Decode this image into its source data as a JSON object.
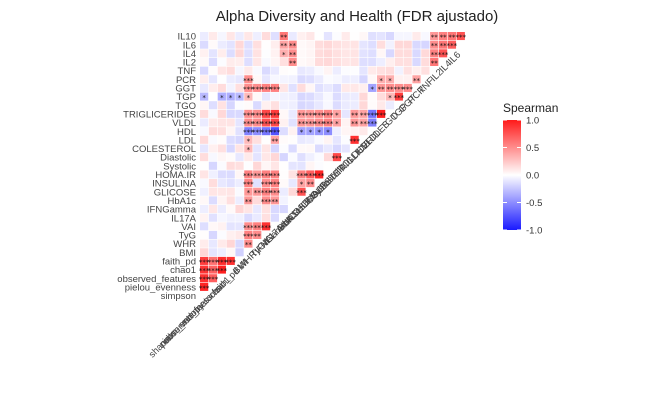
{
  "chart_data": {
    "type": "heatmap",
    "title": "Alpha Diversity and Health (FDR ajustado)",
    "variables": [
      "shannon_entropy",
      "pielou_evenness",
      "observed_features",
      "chao1",
      "faith_pd",
      "BMI",
      "WHR",
      "TyG",
      "VAI",
      "IL17A",
      "IFNGamma",
      "HbA1c",
      "GLICOSE",
      "INSULINA",
      "HOMA.IR",
      "Systolic",
      "Diastolic",
      "COLESTEROL",
      "LDL",
      "HDL",
      "VLDL",
      "TRIGLICERIDES",
      "TGO",
      "TGP",
      "GGT",
      "PCR",
      "TNF",
      "IL2",
      "IL4",
      "IL6",
      "IL10",
      "simpson"
    ],
    "x_order": [
      "shannon_entropy",
      "pielou_evenness",
      "observed_features",
      "chao1",
      "faith_pd",
      "BMI",
      "WHR",
      "TyG",
      "VAI",
      "IL17A",
      "IFNGamma",
      "HbA1c",
      "GLICOSE",
      "INSULINA",
      "HOMA.IR",
      "Systolic",
      "Diastolic",
      "COLESTEROL",
      "LDL",
      "HDL",
      "VLDL",
      "TRIGLICERIDES",
      "TGO",
      "TGP",
      "GGT",
      "PCR",
      "TNF",
      "IL2",
      "IL4",
      "IL6"
    ],
    "y_order": [
      "IL10",
      "IL6",
      "IL4",
      "IL2",
      "TNF",
      "PCR",
      "GGT",
      "TGP",
      "TGO",
      "TRIGLICERIDES",
      "VLDL",
      "HDL",
      "LDL",
      "COLESTEROL",
      "Diastolic",
      "Systolic",
      "HOMA.IR",
      "INSULINA",
      "GLICOSE",
      "HbA1c",
      "IFNGamma",
      "IL17A",
      "VAI",
      "TyG",
      "WHR",
      "BMI",
      "faith_pd",
      "chao1",
      "observed_features",
      "pielou_evenness",
      "simpson"
    ],
    "x_tick_labels_shown": [
      "shannon_entropy",
      "pielou_evenness",
      "observed_features",
      "chao1",
      "faith_pd",
      "BMI",
      "WHR",
      "TyG",
      "VAI",
      "IL17A",
      "IFNGamma",
      "HbA1c",
      "GLICOSE",
      "INSULINA",
      "HOMA.IR",
      "Systolic",
      "Diastolic",
      "COLESTEROL",
      "LDL",
      "HDL",
      "VLDL",
      "TRIGLICERIDES",
      "TGO",
      "TGP",
      "GGT",
      "PCR",
      "TNF",
      "IL2",
      "IL4",
      "IL6"
    ],
    "legend": {
      "title": "Spearman",
      "range": [
        -1,
        1
      ],
      "ticks": [
        1.0,
        0.5,
        0.0,
        -0.5,
        -1.0
      ],
      "tick_labels": [
        "1.0",
        "0.5",
        "0.0",
        "-0.5",
        "-1.0"
      ],
      "colors": {
        "low": "#1a1aff",
        "mid": "#ffffff",
        "high": "#ff1a1a"
      },
      "placement": "right"
    },
    "grid": true,
    "strong_correlations": [
      [
        "shannon_entropy",
        "pielou_evenness",
        0.95,
        "***"
      ],
      [
        "shannon_entropy",
        "observed_features",
        0.9,
        "***"
      ],
      [
        "shannon_entropy",
        "chao1",
        0.88,
        "***"
      ],
      [
        "shannon_entropy",
        "faith_pd",
        0.85,
        "***"
      ],
      [
        "shannon_entropy",
        "simpson",
        0.95,
        "***"
      ],
      [
        "pielou_evenness",
        "observed_features",
        0.7,
        "***"
      ],
      [
        "pielou_evenness",
        "chao1",
        0.68,
        "***"
      ],
      [
        "pielou_evenness",
        "faith_pd",
        0.62,
        "***"
      ],
      [
        "pielou_evenness",
        "simpson",
        0.95,
        "***"
      ],
      [
        "observed_features",
        "chao1",
        0.98,
        "***"
      ],
      [
        "observed_features",
        "faith_pd",
        0.92,
        "***"
      ],
      [
        "chao1",
        "faith_pd",
        0.9,
        "***"
      ],
      [
        "BMI",
        "WHR",
        0.5,
        "**"
      ],
      [
        "BMI",
        "TyG",
        0.55,
        "***"
      ],
      [
        "BMI",
        "VAI",
        0.5,
        "***"
      ],
      [
        "BMI",
        "HbA1c",
        0.45,
        "**"
      ],
      [
        "BMI",
        "GLICOSE",
        0.45,
        "*"
      ],
      [
        "BMI",
        "INSULINA",
        0.55,
        "***"
      ],
      [
        "BMI",
        "HOMA.IR",
        0.55,
        "***"
      ],
      [
        "BMI",
        "COLESTEROL",
        0.3,
        "*"
      ],
      [
        "BMI",
        "LDL",
        0.3,
        "*"
      ],
      [
        "BMI",
        "HDL",
        -0.55,
        "***"
      ],
      [
        "BMI",
        "VLDL",
        0.5,
        "***"
      ],
      [
        "BMI",
        "TRIGLICERIDES",
        0.5,
        "***"
      ],
      [
        "BMI",
        "GGT",
        0.5,
        "***"
      ],
      [
        "BMI",
        "PCR",
        0.5,
        "***"
      ],
      [
        "WHR",
        "TyG",
        0.5,
        "**"
      ],
      [
        "WHR",
        "VAI",
        0.55,
        "**"
      ],
      [
        "WHR",
        "GLICOSE",
        0.45,
        "**"
      ],
      [
        "WHR",
        "HOMA.IR",
        0.45,
        "**"
      ],
      [
        "WHR",
        "VLDL",
        0.5,
        "***"
      ],
      [
        "WHR",
        "TRIGLICERIDES",
        0.5,
        "***"
      ],
      [
        "WHR",
        "GGT",
        0.5,
        "***"
      ],
      [
        "WHR",
        "HDL",
        -0.5,
        "***"
      ],
      [
        "TyG",
        "VAI",
        0.9,
        "***"
      ],
      [
        "TyG",
        "HbA1c",
        0.5,
        "***"
      ],
      [
        "TyG",
        "GLICOSE",
        0.55,
        "***"
      ],
      [
        "TyG",
        "INSULINA",
        0.5,
        "***"
      ],
      [
        "TyG",
        "HOMA.IR",
        0.55,
        "***"
      ],
      [
        "TyG",
        "VLDL",
        0.75,
        "***"
      ],
      [
        "TyG",
        "TRIGLICERIDES",
        0.8,
        "***"
      ],
      [
        "TyG",
        "GGT",
        0.55,
        "***"
      ],
      [
        "TyG",
        "HDL",
        -0.6,
        "***"
      ],
      [
        "VAI",
        "HbA1c",
        0.45,
        "**"
      ],
      [
        "VAI",
        "GLICOSE",
        0.5,
        "***"
      ],
      [
        "VAI",
        "INSULINA",
        0.55,
        "***"
      ],
      [
        "VAI",
        "HOMA.IR",
        0.55,
        "***"
      ],
      [
        "VAI",
        "VLDL",
        0.8,
        "***"
      ],
      [
        "VAI",
        "TRIGLICERIDES",
        0.85,
        "***"
      ],
      [
        "VAI",
        "HDL",
        -0.75,
        "***"
      ],
      [
        "VAI",
        "GGT",
        0.55,
        "***"
      ],
      [
        "VAI",
        "LDL",
        0.4,
        "**"
      ],
      [
        "IL17A",
        "IL10",
        0.6,
        "**"
      ],
      [
        "IFNGamma",
        "IL6",
        0.5,
        "**"
      ],
      [
        "IFNGamma",
        "IL4",
        0.5,
        "**"
      ],
      [
        "IFNGamma",
        "IL2",
        0.5,
        "**"
      ],
      [
        "HbA1c",
        "GLICOSE",
        0.75,
        "***"
      ],
      [
        "HbA1c",
        "HOMA.IR",
        0.55,
        "***"
      ],
      [
        "HbA1c",
        "VLDL",
        0.45,
        "**"
      ],
      [
        "HbA1c",
        "TRIGLICERIDES",
        0.45,
        "**"
      ],
      [
        "HbA1c",
        "HDL",
        -0.4,
        "*"
      ],
      [
        "GLICOSE",
        "INSULINA",
        0.5,
        "**"
      ],
      [
        "GLICOSE",
        "HOMA.IR",
        0.7,
        "***"
      ],
      [
        "GLICOSE",
        "VLDL",
        0.45,
        "***"
      ],
      [
        "GLICOSE",
        "TRIGLICERIDES",
        0.45,
        "***"
      ],
      [
        "GLICOSE",
        "HDL",
        -0.4,
        "*"
      ],
      [
        "INSULINA",
        "HOMA.IR",
        0.95,
        "***"
      ],
      [
        "INSULINA",
        "VLDL",
        0.5,
        "***"
      ],
      [
        "INSULINA",
        "TRIGLICERIDES",
        0.5,
        "***"
      ],
      [
        "INSULINA",
        "HDL",
        -0.45,
        "*"
      ],
      [
        "HOMA.IR",
        "VLDL",
        0.55,
        "***"
      ],
      [
        "HOMA.IR",
        "TRIGLICERIDES",
        0.55,
        "***"
      ],
      [
        "HOMA.IR",
        "HDL",
        -0.5,
        "*"
      ],
      [
        "Systolic",
        "Diastolic",
        0.8,
        "***"
      ],
      [
        "Systolic",
        "VLDL",
        0.4,
        "*"
      ],
      [
        "Systolic",
        "TRIGLICERIDES",
        0.4,
        "*"
      ],
      [
        "COLESTEROL",
        "LDL",
        0.9,
        "***"
      ],
      [
        "COLESTEROL",
        "VLDL",
        0.45,
        "**"
      ],
      [
        "COLESTEROL",
        "TRIGLICERIDES",
        0.45,
        "**"
      ],
      [
        "LDL",
        "VLDL",
        0.4,
        "**"
      ],
      [
        "LDL",
        "TRIGLICERIDES",
        0.4,
        "**"
      ],
      [
        "HDL",
        "VLDL",
        -0.55,
        "***"
      ],
      [
        "HDL",
        "TRIGLICERIDES",
        -0.6,
        "***"
      ],
      [
        "HDL",
        "GGT",
        -0.4,
        "*"
      ],
      [
        "VLDL",
        "TRIGLICERIDES",
        0.98,
        "***"
      ],
      [
        "VLDL",
        "GGT",
        0.45,
        "**"
      ],
      [
        "VLDL",
        "PCR",
        0.35,
        "*"
      ],
      [
        "TRIGLICERIDES",
        "GGT",
        0.5,
        "**"
      ],
      [
        "TRIGLICERIDES",
        "PCR",
        0.35,
        "*"
      ],
      [
        "TGO",
        "TGP",
        0.85,
        "***"
      ],
      [
        "TGO",
        "GGT",
        0.5,
        "***"
      ],
      [
        "TGP",
        "GGT",
        0.5,
        "***"
      ],
      [
        "TGP",
        "TRIGLICERIDES",
        0.3,
        "*"
      ],
      [
        "TGP",
        "BMI",
        0.3,
        "*"
      ],
      [
        "TGP",
        "observed_features",
        -0.35,
        "*"
      ],
      [
        "TGP",
        "chao1",
        -0.35,
        "*"
      ],
      [
        "TGP",
        "shannon_entropy",
        -0.3,
        "*"
      ],
      [
        "GGT",
        "PCR",
        0.4,
        "**"
      ],
      [
        "TNF",
        "IL2",
        0.6,
        "**"
      ],
      [
        "TNF",
        "IL4",
        0.55,
        "**"
      ],
      [
        "TNF",
        "IL6",
        0.5,
        "**"
      ],
      [
        "TNF",
        "IL10",
        0.45,
        "**"
      ],
      [
        "IL2",
        "IL4",
        0.75,
        "***"
      ],
      [
        "IL2",
        "IL6",
        0.6,
        "**"
      ],
      [
        "IL2",
        "IL10",
        0.55,
        "**"
      ],
      [
        "IL4",
        "IL6",
        0.7,
        "***"
      ],
      [
        "IL4",
        "IL10",
        0.6,
        "**"
      ],
      [
        "IL6",
        "IL10",
        0.75,
        "***"
      ],
      [
        "IL17A",
        "IL4",
        0.35,
        "*"
      ],
      [
        "IL17A",
        "IL6",
        0.4,
        "**"
      ],
      [
        "HbA1c",
        "INSULINA",
        0.4,
        "*"
      ],
      [
        "faith_pd",
        "BMI",
        -0.2,
        ""
      ],
      [
        "faith_pd",
        "TGP",
        -0.3,
        "*"
      ]
    ]
  }
}
